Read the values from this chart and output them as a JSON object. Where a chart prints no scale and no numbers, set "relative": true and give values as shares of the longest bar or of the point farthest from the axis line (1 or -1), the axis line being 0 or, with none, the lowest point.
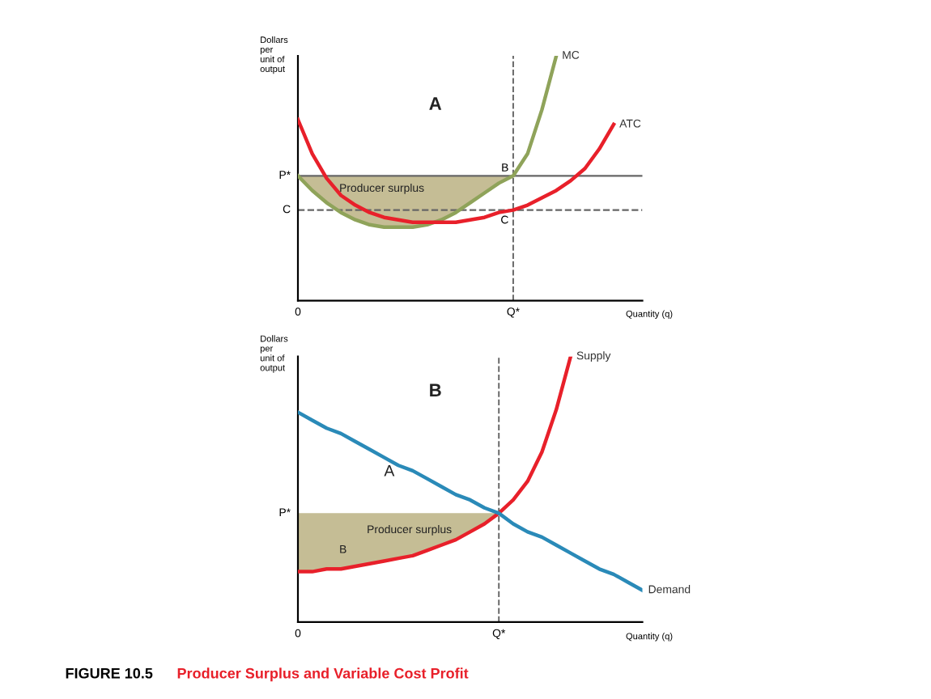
{
  "chart_data": [
    {
      "type": "line",
      "relative": true,
      "xlabel": "Quantity (q)",
      "ylabel": "Dollars\nper\nunit of\noutput",
      "categories": [
        "0",
        null,
        null,
        null,
        null,
        null,
        null,
        null,
        null,
        null,
        null,
        null,
        null,
        null,
        null,
        "Q*",
        null,
        null,
        null,
        null,
        null,
        null,
        null,
        null,
        null
      ],
      "series": [
        {
          "name": "MC",
          "color": "#8fa35a",
          "values": [
            0.51,
            0.45,
            0.4,
            0.36,
            0.33,
            0.31,
            0.3,
            0.3,
            0.3,
            0.31,
            0.33,
            0.36,
            0.4,
            0.44,
            0.48,
            0.51,
            0.6,
            0.78,
            1.0,
            null,
            null,
            null,
            null,
            null,
            null
          ],
          "lower": [
            0.51,
            0.45,
            0.4,
            0.36,
            0.33,
            0.31,
            0.3,
            0.3,
            0.3,
            0.31,
            0.33,
            0.36,
            0.4,
            0.44,
            0.48,
            0.51,
            null,
            null,
            null,
            null,
            null,
            null,
            null,
            null,
            null
          ],
          "upper": [
            0.51,
            0.51,
            0.51,
            0.51,
            0.51,
            0.51,
            0.51,
            0.51,
            0.51,
            0.51,
            0.51,
            0.51,
            0.51,
            0.51,
            0.51,
            0.51,
            null,
            null,
            null,
            null,
            null,
            null,
            null,
            null,
            null
          ]
        },
        {
          "name": "ATC",
          "color": "#e8202a",
          "values": [
            0.74,
            0.6,
            0.5,
            0.43,
            0.39,
            0.36,
            0.34,
            0.33,
            0.32,
            0.32,
            0.32,
            0.32,
            0.33,
            0.34,
            0.36,
            0.37,
            0.39,
            0.42,
            0.45,
            0.49,
            0.54,
            0.62,
            0.72,
            null,
            null
          ]
        }
      ],
      "ref_lines": [
        {
          "axis": "y",
          "value": 0.51,
          "label": "P*",
          "color": "#666666",
          "line_style": "solid"
        },
        {
          "axis": "y",
          "value": 0.37,
          "label": "C",
          "color": "#666666",
          "line_style": "dashed"
        },
        {
          "axis": "x",
          "value": "Q*",
          "label": null,
          "color": "#666666",
          "line_style": "dashed"
        }
      ],
      "annotations": [
        "A",
        "Producer surplus",
        {
          "text": "B",
          "x": "Q*",
          "y": 0.51
        },
        {
          "text": "C",
          "x": "Q*",
          "y": 0.37
        }
      ],
      "grid": false,
      "legend": false,
      "marker": "none",
      "line_style": "solid"
    },
    {
      "type": "line",
      "relative": true,
      "xlabel": "Quantity (q)",
      "ylabel": "Dollars\nper\nunit of\noutput",
      "categories": [
        "0",
        null,
        null,
        null,
        null,
        null,
        null,
        null,
        null,
        null,
        null,
        null,
        null,
        null,
        "Q*",
        null,
        null,
        null,
        null,
        null,
        null,
        null,
        null,
        null,
        null
      ],
      "series": [
        {
          "name": "Supply",
          "color": "#e8202a",
          "values": [
            0.19,
            0.19,
            0.2,
            0.2,
            0.21,
            0.22,
            0.23,
            0.24,
            0.25,
            0.27,
            0.29,
            0.31,
            0.34,
            0.37,
            0.41,
            0.46,
            0.53,
            0.64,
            0.8,
            1.0,
            null,
            null,
            null,
            null,
            null
          ],
          "lower": [
            0.19,
            0.19,
            0.2,
            0.2,
            0.21,
            0.22,
            0.23,
            0.24,
            0.25,
            0.27,
            0.29,
            0.31,
            0.34,
            0.37,
            0.41,
            null,
            null,
            null,
            null,
            null,
            null,
            null,
            null,
            null,
            null
          ],
          "upper": [
            0.41,
            0.41,
            0.41,
            0.41,
            0.41,
            0.41,
            0.41,
            0.41,
            0.41,
            0.41,
            0.41,
            0.41,
            0.41,
            0.41,
            0.41,
            null,
            null,
            null,
            null,
            null,
            null,
            null,
            null,
            null,
            null
          ]
        },
        {
          "name": "Demand",
          "color": "#2a8ab8",
          "values": [
            0.79,
            0.76,
            0.73,
            0.71,
            0.68,
            0.65,
            0.62,
            0.59,
            0.57,
            0.54,
            0.51,
            0.48,
            0.46,
            0.43,
            0.41,
            0.37,
            0.34,
            0.32,
            0.29,
            0.26,
            0.23,
            0.2,
            0.18,
            0.15,
            0.12
          ]
        }
      ],
      "ref_lines": [
        {
          "axis": "x",
          "value": "Q*",
          "label": null,
          "color": "#666666",
          "line_style": "dashed"
        }
      ],
      "annotations": [
        "B",
        "A",
        "B",
        "Producer surplus",
        {
          "text": "P*",
          "x": "0",
          "y": 0.41
        },
        "FIGURE 10.5",
        "Producer Surplus and Variable Cost Profit"
      ],
      "grid": false,
      "legend": false,
      "marker": "none",
      "line_style": "solid"
    }
  ]
}
